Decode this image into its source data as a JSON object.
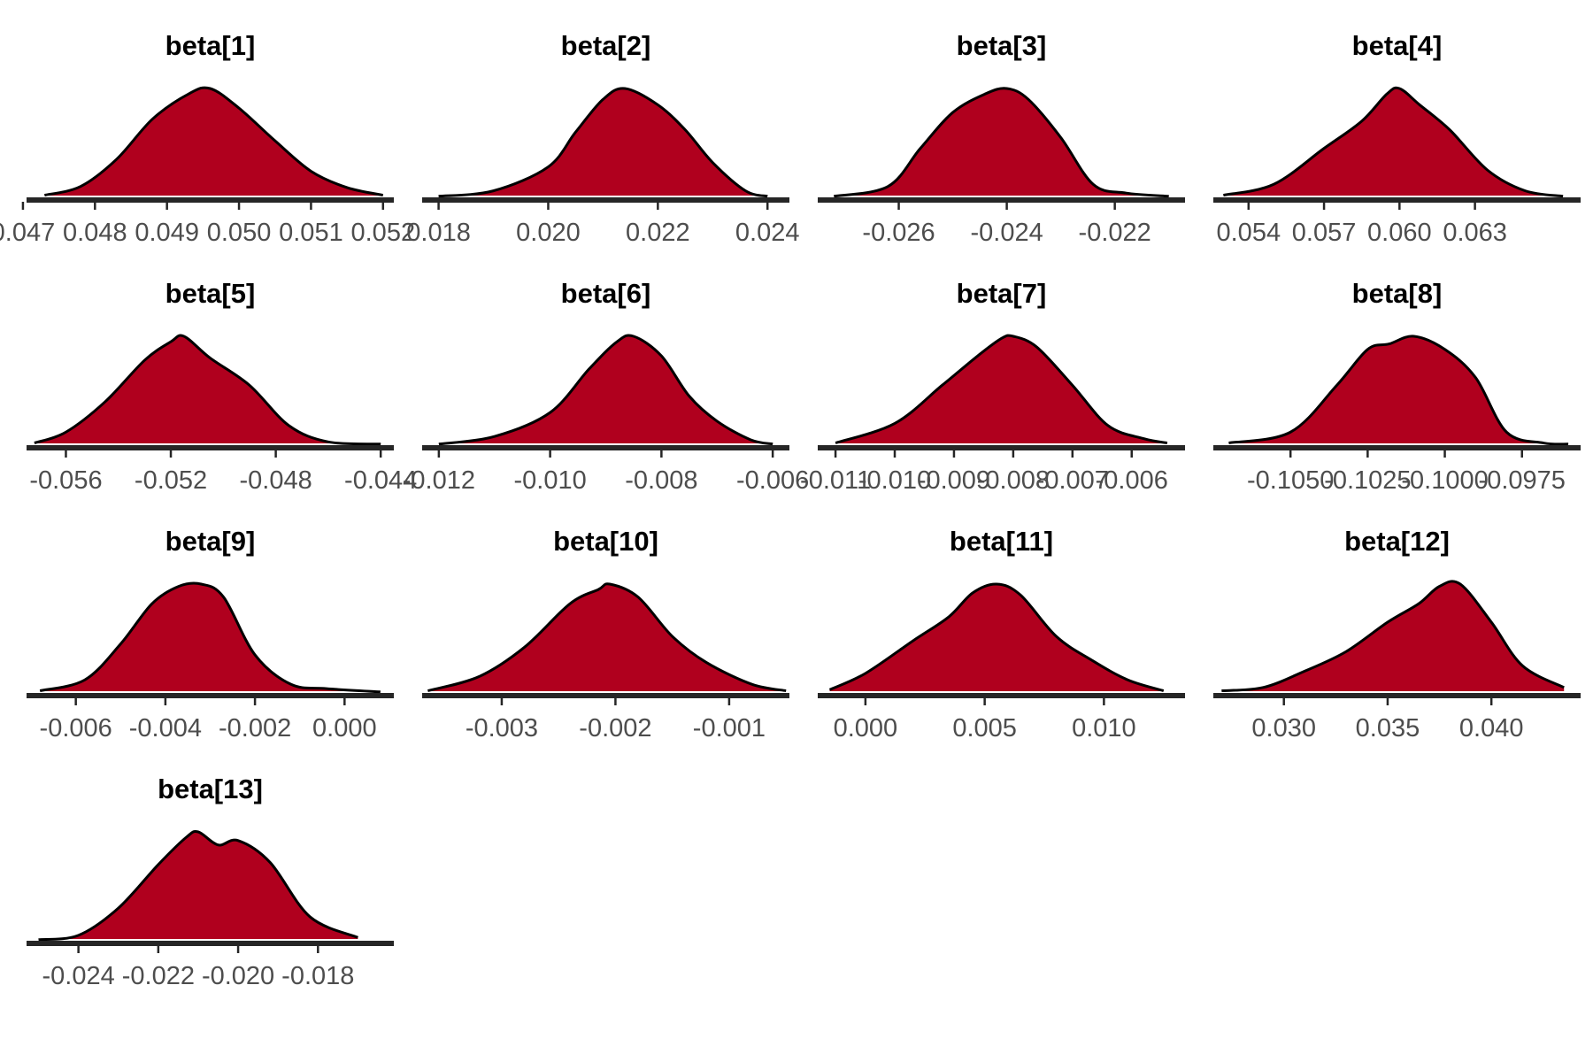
{
  "colors": {
    "fill": "#b0001e",
    "outline": "#000000",
    "axis": "#262626",
    "tick_text": "#4d4d4d"
  },
  "chart_data": [
    {
      "type": "area",
      "title": "beta[1]",
      "xlim": [
        0.04705,
        0.05215
      ],
      "ticks": [
        0.047,
        0.048,
        0.049,
        0.05,
        0.051,
        0.052
      ],
      "tick_labels": [
        "0.047",
        "0.048",
        "0.049",
        "0.050",
        "0.051",
        "0.052"
      ],
      "density": {
        "x": [
          0.0473,
          0.0478,
          0.0483,
          0.0488,
          0.0493,
          0.0496,
          0.05,
          0.0505,
          0.051,
          0.0515,
          0.052
        ],
        "y": [
          0.02,
          0.1,
          0.35,
          0.72,
          0.95,
          1.0,
          0.82,
          0.52,
          0.24,
          0.09,
          0.02
        ]
      }
    },
    {
      "type": "area",
      "title": "beta[2]",
      "xlim": [
        0.0177,
        0.0244
      ],
      "ticks": [
        0.018,
        0.02,
        0.022,
        0.024
      ],
      "tick_labels": [
        "0.018",
        "0.020",
        "0.022",
        "0.024"
      ],
      "density": {
        "x": [
          0.018,
          0.019,
          0.02,
          0.0205,
          0.021,
          0.0214,
          0.022,
          0.0225,
          0.023,
          0.0236,
          0.024
        ],
        "y": [
          0.01,
          0.06,
          0.28,
          0.6,
          0.9,
          1.0,
          0.85,
          0.62,
          0.32,
          0.06,
          0.01
        ]
      }
    },
    {
      "type": "area",
      "title": "beta[3]",
      "xlim": [
        -0.0275,
        -0.0207
      ],
      "ticks": [
        -0.026,
        -0.024,
        -0.022
      ],
      "tick_labels": [
        "-0.026",
        "-0.024",
        "-0.022"
      ],
      "density": {
        "x": [
          -0.0272,
          -0.0262,
          -0.0256,
          -0.025,
          -0.0244,
          -0.024,
          -0.0236,
          -0.023,
          -0.0224,
          -0.0218,
          -0.021
        ],
        "y": [
          0.01,
          0.1,
          0.45,
          0.78,
          0.95,
          1.0,
          0.9,
          0.55,
          0.12,
          0.04,
          0.01
        ]
      }
    },
    {
      "type": "area",
      "title": "beta[4]",
      "xlim": [
        0.0526,
        0.0672
      ],
      "ticks": [
        0.054,
        0.057,
        0.06,
        0.063
      ],
      "tick_labels": [
        "0.054",
        "0.057",
        "0.060",
        "0.063"
      ],
      "density": {
        "x": [
          0.053,
          0.055,
          0.057,
          0.0585,
          0.0595,
          0.06,
          0.0608,
          0.062,
          0.0635,
          0.065,
          0.0665
        ],
        "y": [
          0.02,
          0.12,
          0.45,
          0.7,
          0.95,
          1.0,
          0.85,
          0.62,
          0.25,
          0.06,
          0.01
        ]
      }
    },
    {
      "type": "area",
      "title": "beta[5]",
      "xlim": [
        -0.0575,
        -0.0435
      ],
      "ticks": [
        -0.056,
        -0.052,
        -0.048,
        -0.044
      ],
      "tick_labels": [
        "-0.056",
        "-0.052",
        "-0.048",
        "-0.044"
      ],
      "density": {
        "x": [
          -0.0572,
          -0.056,
          -0.0545,
          -0.053,
          -0.052,
          -0.0515,
          -0.0505,
          -0.049,
          -0.0475,
          -0.046,
          -0.044
        ],
        "y": [
          0.02,
          0.12,
          0.4,
          0.78,
          0.95,
          1.0,
          0.8,
          0.55,
          0.18,
          0.03,
          0.01
        ]
      }
    },
    {
      "type": "area",
      "title": "beta[6]",
      "xlim": [
        -0.0123,
        -0.0057
      ],
      "ticks": [
        -0.012,
        -0.01,
        -0.008,
        -0.006
      ],
      "tick_labels": [
        "-0.012",
        "-0.010",
        "-0.008",
        "-0.006"
      ],
      "density": {
        "x": [
          -0.012,
          -0.011,
          -0.01,
          -0.0093,
          -0.0088,
          -0.0085,
          -0.008,
          -0.0075,
          -0.007,
          -0.0064,
          -0.006
        ],
        "y": [
          0.01,
          0.08,
          0.3,
          0.7,
          0.95,
          1.0,
          0.82,
          0.45,
          0.22,
          0.05,
          0.01
        ]
      }
    },
    {
      "type": "area",
      "title": "beta[7]",
      "xlim": [
        -0.0113,
        -0.0051
      ],
      "ticks": [
        -0.011,
        -0.01,
        -0.009,
        -0.008,
        -0.007,
        -0.006
      ],
      "tick_labels": [
        "-0.011",
        "-0.010",
        "-0.009",
        "-0.008",
        "-0.007",
        "-0.006"
      ],
      "density": {
        "x": [
          -0.011,
          -0.01,
          -0.0092,
          -0.0086,
          -0.0082,
          -0.008,
          -0.0076,
          -0.007,
          -0.0064,
          -0.0058,
          -0.0054
        ],
        "y": [
          0.02,
          0.2,
          0.55,
          0.82,
          0.98,
          1.0,
          0.9,
          0.55,
          0.18,
          0.06,
          0.02
        ]
      }
    },
    {
      "type": "area",
      "title": "beta[8]",
      "xlim": [
        -0.1075,
        -0.0956
      ],
      "ticks": [
        -0.105,
        -0.1025,
        -0.1,
        -0.0975
      ],
      "tick_labels": [
        "-0.1050",
        "-0.1025",
        "-0.1000",
        "-0.0975"
      ],
      "density": {
        "x": [
          -0.107,
          -0.105,
          -0.1035,
          -0.1025,
          -0.1018,
          -0.101,
          -0.1,
          -0.099,
          -0.098,
          -0.0968,
          -0.096
        ],
        "y": [
          0.02,
          0.12,
          0.55,
          0.88,
          0.93,
          1.0,
          0.88,
          0.62,
          0.12,
          0.02,
          0.01
        ]
      }
    },
    {
      "type": "area",
      "title": "beta[9]",
      "xlim": [
        -0.0071,
        0.0011
      ],
      "ticks": [
        -0.006,
        -0.004,
        -0.002,
        0.0
      ],
      "tick_labels": [
        "-0.006",
        "-0.004",
        "-0.002",
        "0.000"
      ],
      "density": {
        "x": [
          -0.0068,
          -0.0058,
          -0.005,
          -0.0043,
          -0.0037,
          -0.0032,
          -0.0027,
          -0.002,
          -0.0012,
          -0.0004,
          0.0008
        ],
        "y": [
          0.02,
          0.12,
          0.45,
          0.82,
          0.98,
          1.0,
          0.88,
          0.35,
          0.08,
          0.04,
          0.01
        ]
      }
    },
    {
      "type": "area",
      "title": "beta[10]",
      "xlim": [
        -0.0037,
        -0.00047
      ],
      "ticks": [
        -0.003,
        -0.002,
        -0.001
      ],
      "tick_labels": [
        "-0.003",
        "-0.002",
        "-0.001"
      ],
      "density": {
        "x": [
          -0.00365,
          -0.0032,
          -0.0028,
          -0.0024,
          -0.00215,
          -0.00205,
          -0.0018,
          -0.0015,
          -0.0012,
          -0.0008,
          -0.0005
        ],
        "y": [
          0.02,
          0.15,
          0.42,
          0.82,
          0.95,
          1.0,
          0.88,
          0.52,
          0.28,
          0.08,
          0.02
        ]
      }
    },
    {
      "type": "area",
      "title": "beta[11]",
      "xlim": [
        -0.002,
        0.0134
      ],
      "ticks": [
        0.0,
        0.005,
        0.01
      ],
      "tick_labels": [
        "0.000",
        "0.005",
        "0.010"
      ],
      "density": {
        "x": [
          -0.0015,
          0.0,
          0.002,
          0.0035,
          0.0045,
          0.0055,
          0.0065,
          0.008,
          0.0095,
          0.011,
          0.0125
        ],
        "y": [
          0.03,
          0.18,
          0.48,
          0.7,
          0.92,
          1.0,
          0.9,
          0.52,
          0.3,
          0.12,
          0.02
        ]
      }
    },
    {
      "type": "area",
      "title": "beta[12]",
      "xlim": [
        0.0266,
        0.0443
      ],
      "ticks": [
        0.03,
        0.035,
        0.04
      ],
      "tick_labels": [
        "0.030",
        "0.035",
        "0.040"
      ],
      "density": {
        "x": [
          0.027,
          0.029,
          0.031,
          0.033,
          0.035,
          0.0365,
          0.0375,
          0.0385,
          0.04,
          0.0415,
          0.0435
        ],
        "y": [
          0.02,
          0.05,
          0.2,
          0.38,
          0.65,
          0.82,
          0.98,
          1.0,
          0.65,
          0.25,
          0.05
        ]
      }
    },
    {
      "type": "area",
      "title": "beta[13]",
      "xlim": [
        -0.0253,
        -0.0161
      ],
      "ticks": [
        -0.024,
        -0.022,
        -0.02,
        -0.018
      ],
      "tick_labels": [
        "-0.024",
        "-0.022",
        "-0.020",
        "-0.018"
      ],
      "density": {
        "x": [
          -0.025,
          -0.024,
          -0.023,
          -0.022,
          -0.0213,
          -0.021,
          -0.0205,
          -0.02,
          -0.0192,
          -0.0182,
          -0.017
        ],
        "y": [
          0.01,
          0.05,
          0.3,
          0.7,
          0.95,
          1.0,
          0.88,
          0.92,
          0.72,
          0.22,
          0.03
        ]
      }
    }
  ]
}
